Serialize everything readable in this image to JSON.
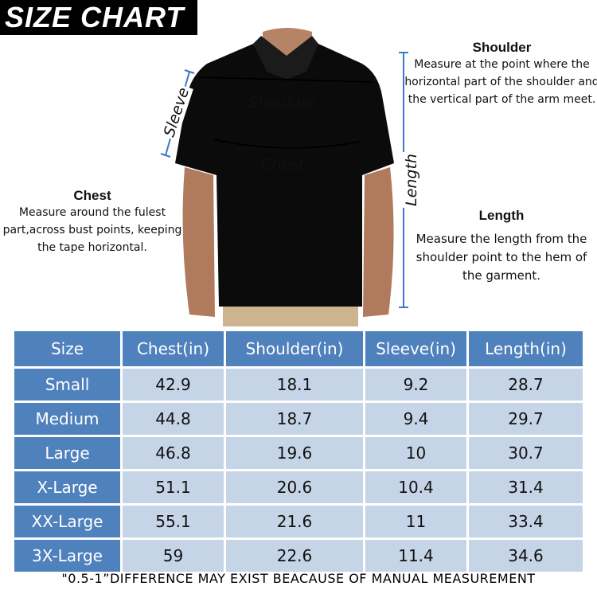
{
  "title": "SIZE CHART",
  "figure_labels": {
    "sleeve": "Sleeve",
    "shoulder": "Shoulder",
    "chest": "Chest",
    "length": "Length"
  },
  "notes": {
    "shoulder": {
      "heading": "Shoulder",
      "text": "Measure at the point where the horizontal part of the shoulder and the vertical part of the arm meet."
    },
    "chest": {
      "heading": "Chest",
      "text": "Measure around the fulest part,across bust points, keeping the tape horizontal."
    },
    "length": {
      "heading": "Length",
      "text": "Measure the length from the shoulder point to the hem of the garment."
    }
  },
  "colors": {
    "header": "#4f81bd",
    "cell": "#c6d4e7",
    "measure_line": "#3a78c9"
  },
  "table": {
    "headers": [
      "Size",
      "Chest(in)",
      "Shoulder(in)",
      "Sleeve(in)",
      "Length(in)"
    ],
    "rows": [
      [
        "Small",
        "42.9",
        "18.1",
        "9.2",
        "28.7"
      ],
      [
        "Medium",
        "44.8",
        "18.7",
        "9.4",
        "29.7"
      ],
      [
        "Large",
        "46.8",
        "19.6",
        "10",
        "30.7"
      ],
      [
        "X-Large",
        "51.1",
        "20.6",
        "10.4",
        "31.4"
      ],
      [
        "XX-Large",
        "55.1",
        "21.6",
        "11",
        "33.4"
      ],
      [
        "3X-Large",
        "59",
        "22.6",
        "11.4",
        "34.6"
      ]
    ]
  },
  "footer": "\"0.5-1”DIFFERENCE MAY EXIST BEACAUSE OF MANUAL MEASUREMENT"
}
